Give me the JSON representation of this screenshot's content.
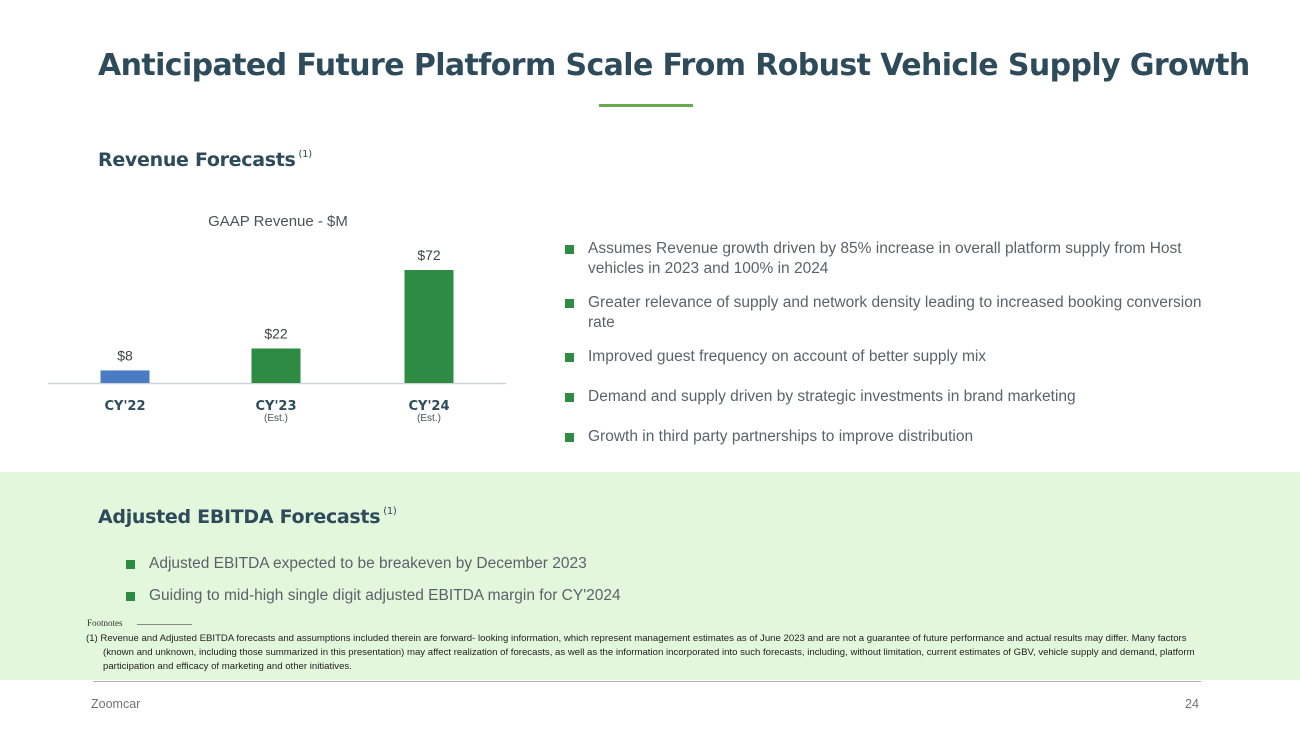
{
  "title": "Anticipated Future Platform Scale From Robust Vehicle Supply Growth",
  "revenue_section": {
    "heading": "Revenue Forecasts",
    "heading_sup": "(1)",
    "bullets": [
      "Assumes Revenue growth driven by 85% increase in overall platform supply from Host vehicles in 2023 and 100% in 2024",
      "Greater relevance of supply and network density leading to increased booking conversion rate",
      "Improved guest frequency on account of better supply mix",
      "Demand and supply driven by strategic investments in brand marketing",
      "Growth in third party partnerships to improve distribution"
    ]
  },
  "chart_data": {
    "type": "bar",
    "title": "GAAP Revenue - $M",
    "categories": [
      "CY'22",
      "CY'23",
      "CY'24"
    ],
    "sublabels": [
      "",
      "(Est.)",
      "(Est.)"
    ],
    "values": [
      8,
      22,
      72
    ],
    "data_labels": [
      "$8",
      "$22",
      "$72"
    ],
    "bar_colors": [
      "#4a7cc4",
      "#2e8b43",
      "#2e8b43"
    ],
    "ylim": [
      0,
      72
    ],
    "grid": false
  },
  "ebitda_section": {
    "heading": "Adjusted EBITDA Forecasts",
    "heading_sup": "(1)",
    "bullets": [
      "Adjusted EBITDA expected to be breakeven by December 2023",
      "Guiding to mid-high single digit adjusted EBITDA margin for CY'2024"
    ]
  },
  "footnotes": {
    "label": "Footnotes",
    "text": "(1) Revenue and Adjusted EBITDA forecasts and assumptions included therein are forward- looking information, which represent management estimates as of June 2023 and are not a guarantee of future performance and actual results may differ. Many factors (known and unknown, including those summarized in this presentation) may affect  realization of forecasts, as well as the information incorporated into such forecasts, including, without limitation, current estimates of GBV, vehicle supply and demand, platform participation and efficacy of marketing and other initiatives."
  },
  "footer": {
    "brand": "Zoomcar",
    "page_number": "24"
  },
  "colors": {
    "title": "#2d4b5a",
    "accent_green": "#2e8b43",
    "rule_green": "#6aa84f",
    "band": "#e3f7dd",
    "bar_blue": "#4a7cc4"
  }
}
